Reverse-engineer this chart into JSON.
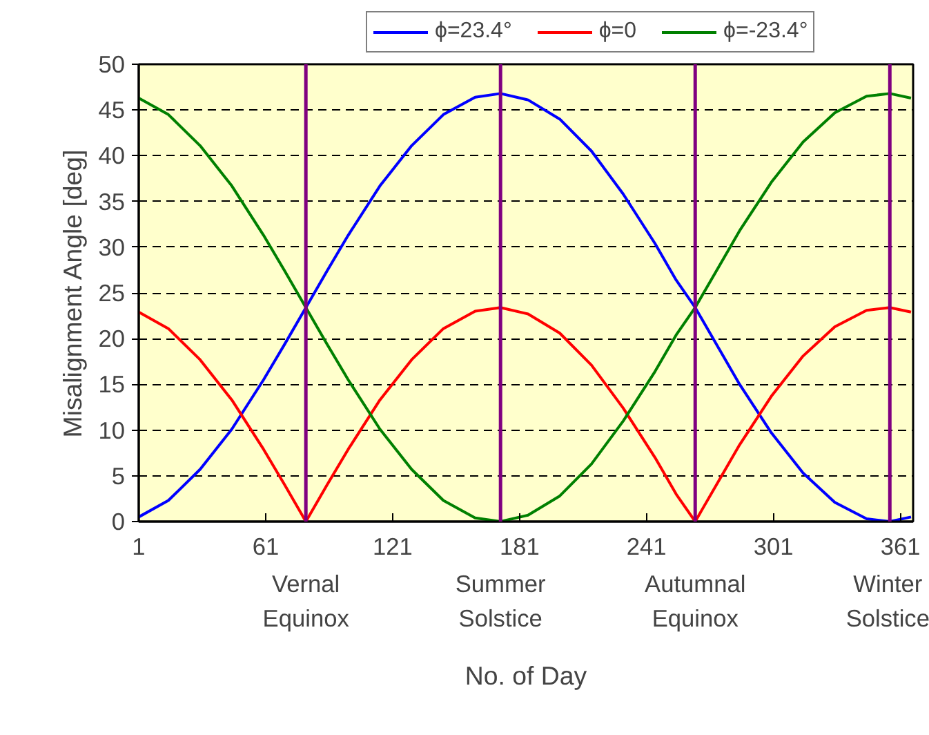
{
  "chart_data": {
    "type": "line",
    "xlabel": "No. of Day",
    "ylabel": "Misalignment Angle [deg]",
    "x": [
      1,
      15,
      30,
      45,
      60,
      70,
      80,
      90,
      100,
      115,
      130,
      145,
      160,
      172,
      185,
      200,
      215,
      230,
      245,
      255,
      264,
      275,
      285,
      300,
      315,
      330,
      345,
      356,
      366
    ],
    "series": [
      {
        "name": "ϕ=23.4°",
        "color": "#0000ff",
        "values": [
          0.5,
          2.3,
          5.7,
          10.1,
          15.5,
          19.4,
          23.4,
          27.4,
          31.3,
          36.7,
          41.1,
          44.5,
          46.4,
          46.8,
          46.1,
          44.0,
          40.5,
          35.8,
          30.4,
          26.4,
          23.4,
          19.0,
          15.0,
          9.7,
          5.3,
          2.1,
          0.3,
          0.0,
          0.5
        ]
      },
      {
        "name": "ϕ=0",
        "color": "#ff0000",
        "values": [
          22.9,
          21.1,
          17.7,
          13.3,
          7.9,
          4.0,
          0.0,
          4.0,
          7.9,
          13.3,
          17.7,
          21.1,
          23.0,
          23.4,
          22.7,
          20.6,
          17.1,
          12.4,
          7.0,
          3.0,
          0.0,
          4.4,
          8.4,
          13.7,
          18.1,
          21.3,
          23.1,
          23.4,
          22.9
        ]
      },
      {
        "name": "ϕ=-23.4°",
        "color": "#008000",
        "values": [
          46.3,
          44.5,
          41.1,
          36.7,
          31.3,
          27.4,
          23.4,
          19.4,
          15.5,
          10.1,
          5.7,
          2.3,
          0.4,
          0.0,
          0.7,
          2.8,
          6.3,
          11.0,
          16.4,
          20.4,
          23.4,
          27.8,
          31.8,
          37.1,
          41.5,
          44.7,
          46.5,
          46.8,
          46.3
        ]
      }
    ],
    "xlim": [
      1,
      367
    ],
    "xticks": [
      1,
      61,
      121,
      181,
      241,
      301,
      361
    ],
    "ylim": [
      0,
      50
    ],
    "yticks": [
      0,
      5,
      10,
      15,
      20,
      25,
      30,
      35,
      40,
      45,
      50
    ],
    "ref_lines": [
      {
        "axis": "x",
        "value": 80,
        "label": "Vernal Equinox",
        "color": "#800080"
      },
      {
        "axis": "x",
        "value": 172,
        "label": "Summer Solstice",
        "color": "#800080"
      },
      {
        "axis": "x",
        "value": 264,
        "label": "Autumnal Equinox",
        "color": "#800080"
      },
      {
        "axis": "x",
        "value": 356,
        "label": "Winter Solstice",
        "color": "#800080"
      }
    ],
    "grid": "y",
    "legend": "top",
    "line_style": "solid",
    "marker": "none"
  }
}
